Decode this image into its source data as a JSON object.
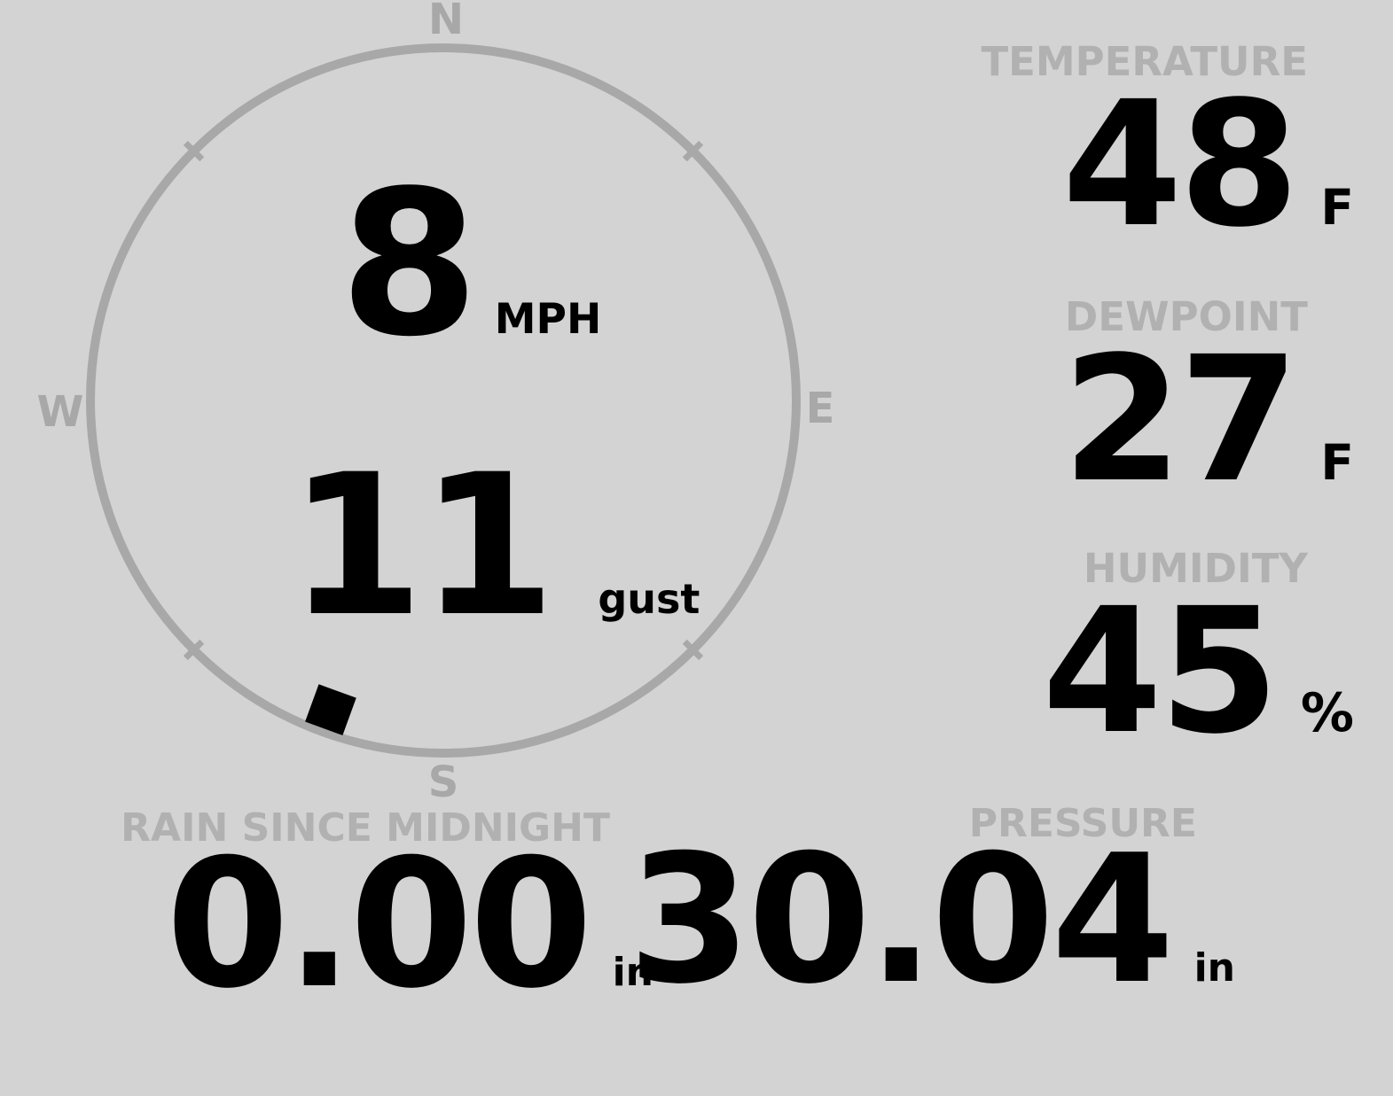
{
  "theme": {
    "background": "#d3d3d3",
    "muted_gray": "#b1b1b1",
    "compass_gray": "#a8a8a8",
    "ink": "#000000"
  },
  "wind": {
    "speed": "8",
    "speed_unit": "MPH",
    "gust": "11",
    "gust_unit": "gust",
    "direction_degrees": 200,
    "compass": {
      "north": "N",
      "east": "E",
      "south": "S",
      "west": "W"
    }
  },
  "metrics": [
    {
      "id": "temperature",
      "label": "TEMPERATURE",
      "value": "48",
      "unit": "F"
    },
    {
      "id": "dewpoint",
      "label": "DEWPOINT",
      "value": "27",
      "unit": "F"
    },
    {
      "id": "humidity",
      "label": "HUMIDITY",
      "value": "45",
      "unit": "%"
    }
  ],
  "bottom_metrics": [
    {
      "id": "rain",
      "label": "RAIN SINCE MIDNIGHT",
      "value": "0.00",
      "unit": "in"
    },
    {
      "id": "pressure",
      "label": "PRESSURE",
      "value": "30.04",
      "unit": "in"
    }
  ]
}
